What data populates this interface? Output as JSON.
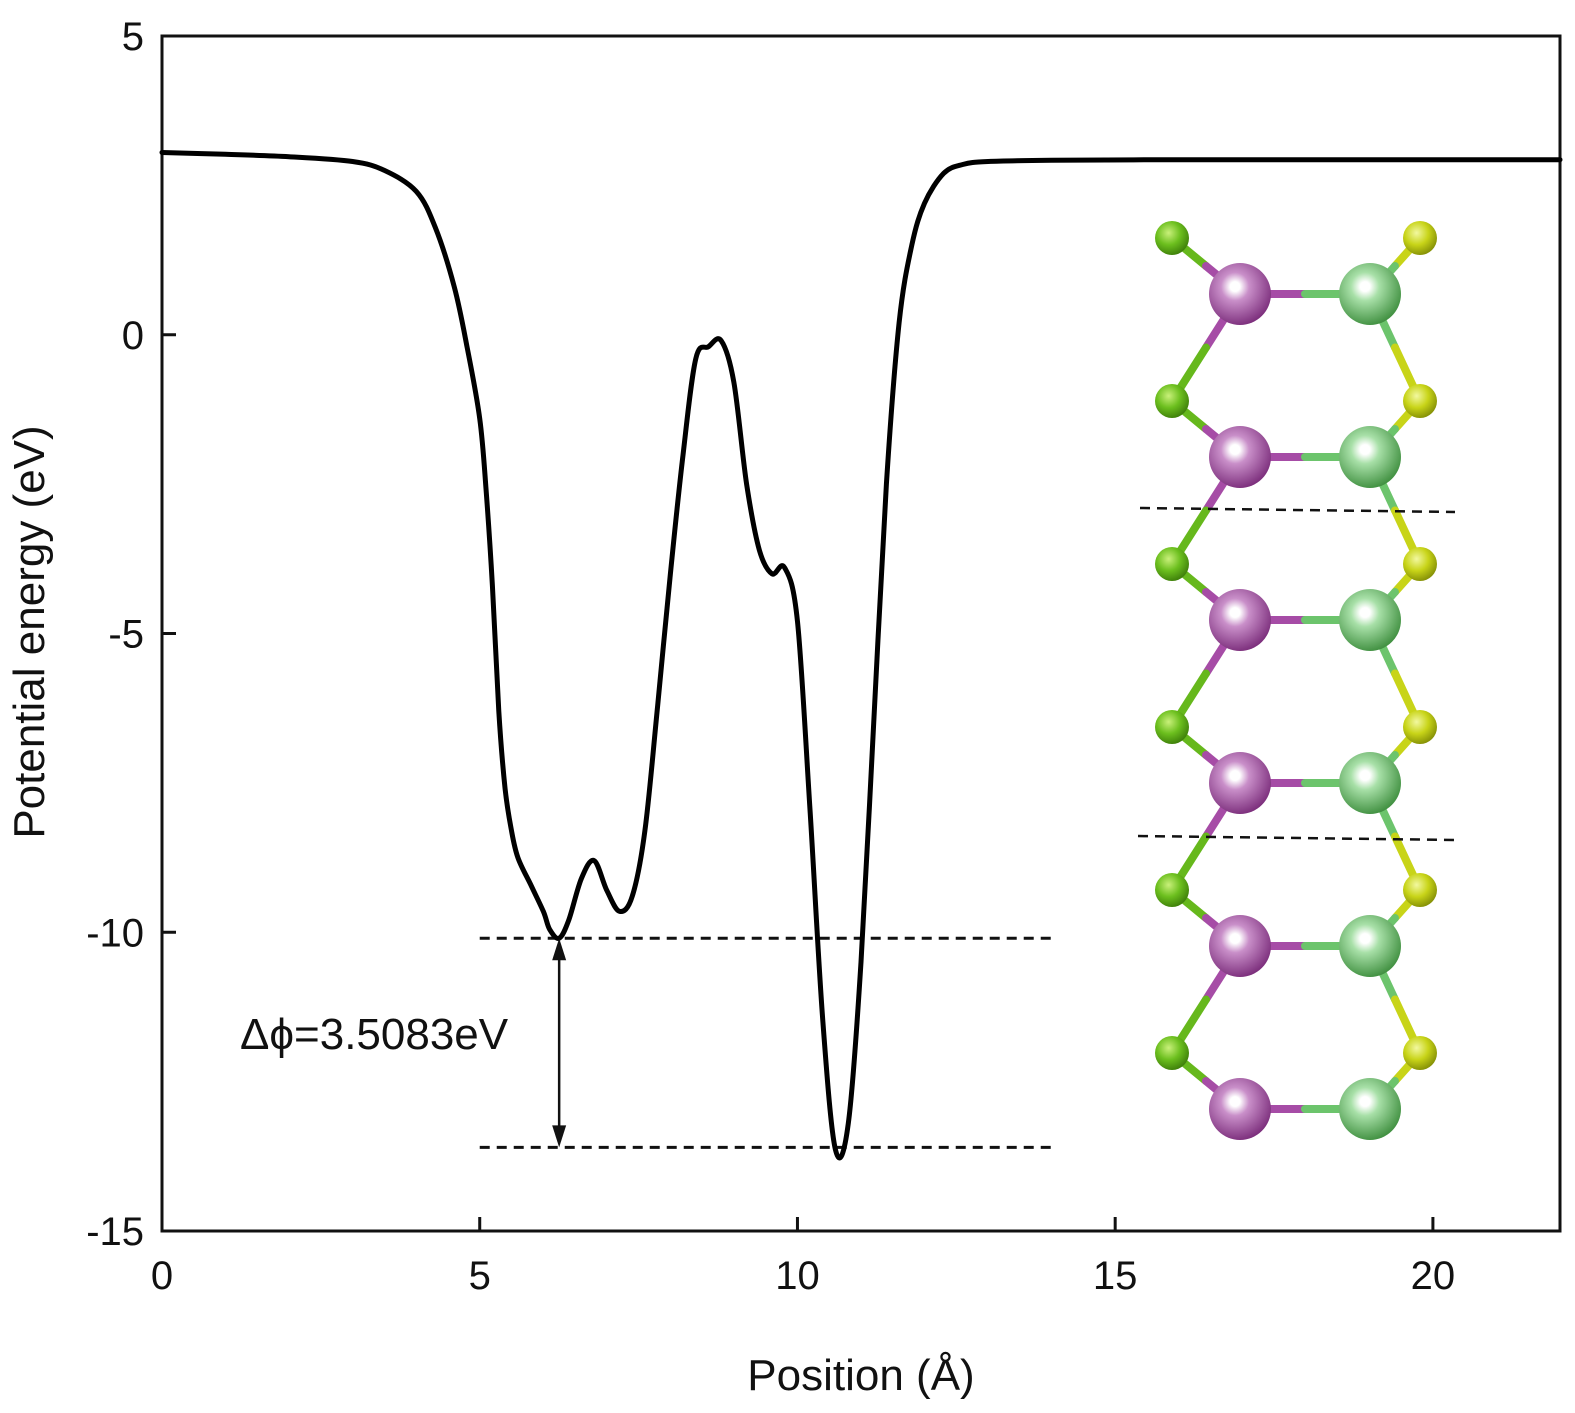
{
  "chart_data": {
    "type": "line",
    "xlabel": "Position (Å)",
    "ylabel": "Potential energy (eV)",
    "xlim": [
      0,
      22
    ],
    "ylim": [
      -15,
      5
    ],
    "xticks": [
      0,
      5,
      10,
      15,
      20
    ],
    "yticks": [
      5,
      0,
      -5,
      -10,
      -15
    ],
    "grid": false,
    "series": [
      {
        "x": [
          0,
          1,
          2,
          3,
          3.5,
          4,
          4.3,
          4.6,
          4.8,
          5.0,
          5.1,
          5.2,
          5.3,
          5.4,
          5.5,
          5.6,
          5.8,
          6.0,
          6.1,
          6.25,
          6.4,
          6.6,
          6.8,
          7.0,
          7.2,
          7.4,
          7.6,
          7.8,
          8.0,
          8.2,
          8.4,
          8.6,
          8.8,
          9.0,
          9.2,
          9.4,
          9.6,
          9.8,
          10.0,
          10.2,
          10.4,
          10.6,
          10.8,
          11.0,
          11.2,
          11.4,
          11.6,
          11.8,
          12.0,
          12.3,
          12.6,
          13,
          14,
          16,
          18,
          20,
          22
        ],
        "y": [
          3.05,
          3.02,
          2.98,
          2.9,
          2.75,
          2.4,
          1.8,
          0.8,
          -0.2,
          -1.4,
          -2.6,
          -4.2,
          -6.3,
          -7.6,
          -8.3,
          -8.75,
          -9.2,
          -9.65,
          -9.95,
          -10.1,
          -9.8,
          -9.1,
          -8.8,
          -9.3,
          -9.65,
          -9.4,
          -8.3,
          -6.2,
          -4.0,
          -2.0,
          -0.4,
          -0.2,
          -0.1,
          -0.8,
          -2.5,
          -3.6,
          -4.0,
          -3.9,
          -4.8,
          -8.0,
          -11.5,
          -13.65,
          -13.2,
          -10.5,
          -6.5,
          -2.5,
          0.2,
          1.5,
          2.2,
          2.7,
          2.85,
          2.9,
          2.92,
          2.93,
          2.93,
          2.93,
          2.93
        ]
      }
    ],
    "reference_lines": [
      {
        "y": -10.1,
        "x_from": 5.0,
        "x_to": 14.0
      },
      {
        "y": -13.6,
        "x_from": 5.0,
        "x_to": 14.0
      }
    ],
    "annotations": [
      {
        "text": "Δϕ=3.5083eV",
        "x_arrow": 6.25,
        "y_from": -10.1,
        "y_to": -13.6
      }
    ],
    "inset": {
      "type": "atomic-structure",
      "colors": {
        "large_left": "#a64ca6",
        "large_right": "#6cc46c",
        "small_left": "#66b81c",
        "small_right": "#c8d418"
      }
    }
  }
}
